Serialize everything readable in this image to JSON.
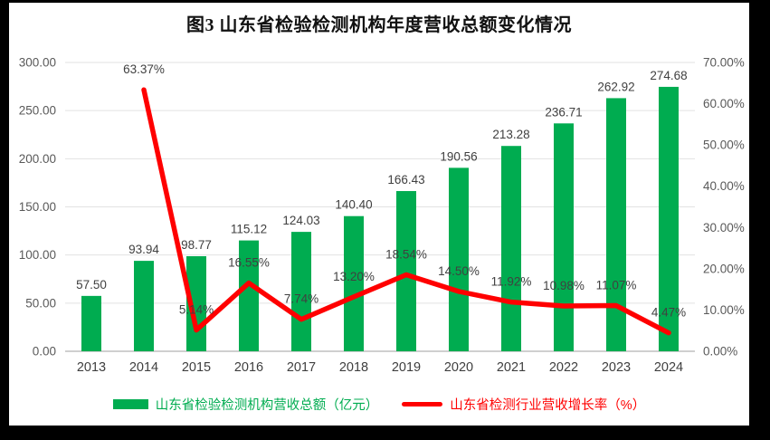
{
  "window": {
    "frame_background": "#000000",
    "panel_background": "#ffffff"
  },
  "chart_data": {
    "type": "combo-bar-line",
    "title": "图3  山东省检验检测机构年度营收总额变化情况",
    "categories": [
      "2013",
      "2014",
      "2015",
      "2016",
      "2017",
      "2018",
      "2019",
      "2020",
      "2021",
      "2022",
      "2023",
      "2024"
    ],
    "series": [
      {
        "name": "山东省检验检测机构营收总额（亿元）",
        "type": "bar",
        "axis": "left",
        "color": "#00AC50",
        "values": [
          57.5,
          93.94,
          98.77,
          115.12,
          124.03,
          140.4,
          166.43,
          190.56,
          213.28,
          236.71,
          262.92,
          274.68
        ],
        "labels": [
          "57.50",
          "93.94",
          "98.77",
          "115.12",
          "124.03",
          "140.40",
          "166.43",
          "190.56",
          "213.28",
          "236.71",
          "262.92",
          "274.68"
        ]
      },
      {
        "name": "山东省检测行业营收增长率（%）",
        "type": "line",
        "axis": "right",
        "color": "#FF0000",
        "values": [
          null,
          63.37,
          5.14,
          16.55,
          7.74,
          13.2,
          18.54,
          14.5,
          11.92,
          10.98,
          11.07,
          4.47
        ],
        "labels": [
          null,
          "63.37%",
          "5.14%",
          "16.55%",
          "7.74%",
          "13.20%",
          "18.54%",
          "14.50%",
          "11.92%",
          "10.98%",
          "11.07%",
          "4.47%"
        ]
      }
    ],
    "left_axis": {
      "min": 0,
      "max": 300,
      "step": 50,
      "tick_labels": [
        "0.00",
        "50.00",
        "100.00",
        "150.00",
        "200.00",
        "250.00",
        "300.00"
      ]
    },
    "right_axis": {
      "min": 0,
      "max": 70,
      "step": 10,
      "tick_labels": [
        "0.00%",
        "10.00%",
        "20.00%",
        "30.00%",
        "40.00%",
        "50.00%",
        "60.00%",
        "70.00%"
      ]
    },
    "grid": true,
    "legend_position": "bottom",
    "colors": {
      "gridline": "#E2E2E2",
      "axis_line": "#BFBFBF",
      "tick_label": "#595959",
      "category_label": "#3F3F3F",
      "data_label": "#404040",
      "title": "#111111"
    }
  }
}
